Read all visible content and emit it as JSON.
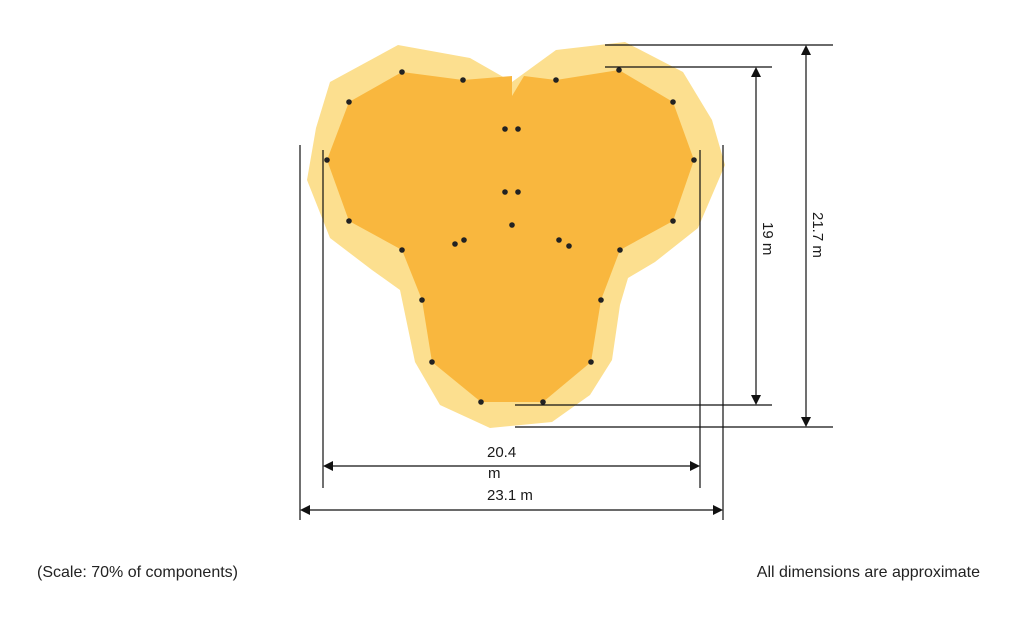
{
  "colors": {
    "safety_zone": "#fcdf8f",
    "structure": "#f9b73e",
    "post": "#222222",
    "dimension_line": "#111111"
  },
  "dimensions": {
    "inner_width": {
      "value": "20.4",
      "unit": "m"
    },
    "outer_width": {
      "label": "23.1 m"
    },
    "inner_height": {
      "label": "19 m"
    },
    "outer_height": {
      "label": "21.7 m"
    }
  },
  "footer": {
    "scale_note": "(Scale: 70% of components)",
    "disclaimer": "All dimensions are approximate"
  }
}
